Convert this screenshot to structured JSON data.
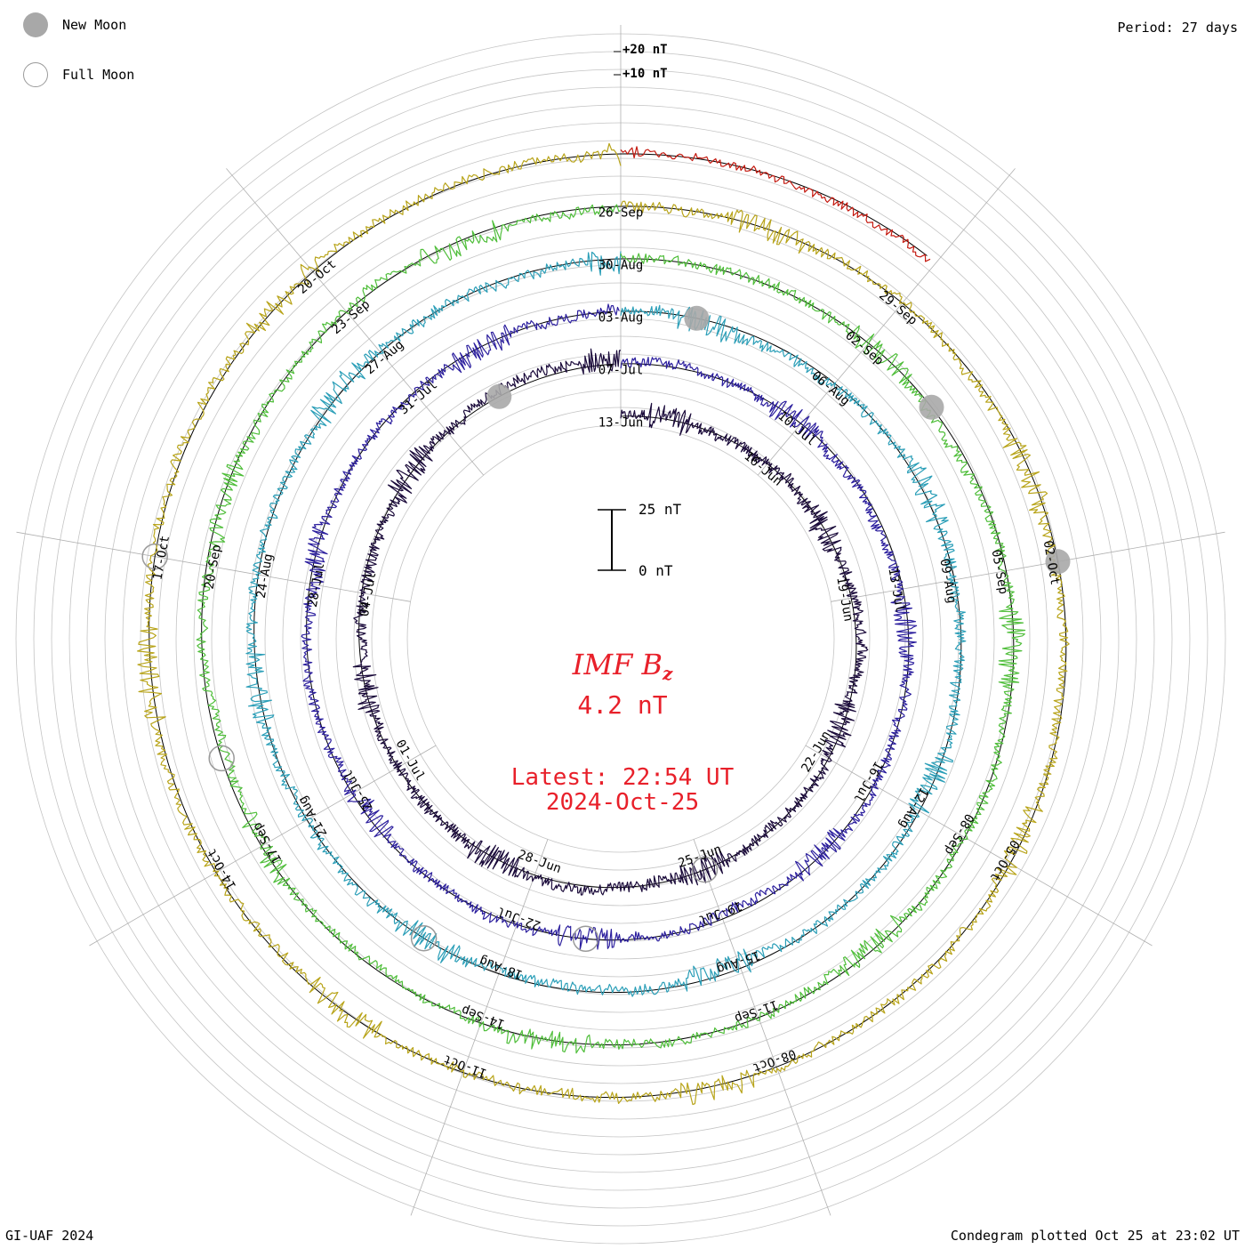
{
  "legend": {
    "new_moon": "New Moon",
    "full_moon": "Full Moon"
  },
  "period_label": "Period: 27 days",
  "ring_scale": {
    "plus20": "+20 nT",
    "plus10": "+10 nT"
  },
  "scale_bar": {
    "top": "25 nT",
    "bottom": "0 nT"
  },
  "center": {
    "title": "IMF B",
    "subscript": "z",
    "value": "4.2 nT",
    "latest_line1": "Latest: 22:54 UT",
    "latest_line2": "2024-Oct-25"
  },
  "footer": {
    "left": "GI-UAF 2024",
    "right": "Condegram plotted Oct 25 at 23:02 UT"
  },
  "colors": {
    "accent_text": "#e8202a",
    "grid": "#c4c4c4",
    "baseline": "#000000"
  },
  "chart_data": {
    "type": "line",
    "quantity": "IMF Bz",
    "unit": "nT",
    "period_days": 27,
    "series": [
      {
        "start": "2024-06-10",
        "color": "#1a0a3a",
        "amplitude": 10,
        "date_labels": [
          "13-Jun",
          "16-Jun",
          "19-Jun",
          "22-Jun",
          "25-Jun",
          "28-Jun",
          "01-Jul",
          "04-Jul"
        ]
      },
      {
        "start": "2024-07-07",
        "color": "#2c1f9e",
        "amplitude": 9,
        "date_labels": [
          "07-Jul",
          "10-Jul",
          "13-Jul",
          "16-Jul",
          "19-Jul",
          "22-Jul",
          "25-Jul",
          "28-Jul",
          "31-Jul"
        ]
      },
      {
        "start": "2024-08-03",
        "color": "#2c9fb8",
        "amplitude": 10,
        "date_labels": [
          "03-Aug",
          "06-Aug",
          "09-Aug",
          "12-Aug",
          "15-Aug",
          "18-Aug",
          "21-Aug",
          "24-Aug",
          "27-Aug"
        ]
      },
      {
        "start": "2024-08-30",
        "color": "#4fbe3a",
        "amplitude": 9,
        "date_labels": [
          "30-Aug",
          "02-Sep",
          "05-Sep",
          "08-Sep",
          "11-Sep",
          "14-Sep",
          "17-Sep",
          "20-Sep",
          "23-Sep"
        ]
      },
      {
        "start": "2024-09-26",
        "color": "#b8a41a",
        "amplitude": 9,
        "date_labels": [
          "26-Sep",
          "29-Sep",
          "02-Oct",
          "05-Oct",
          "08-Oct",
          "11-Oct",
          "14-Oct",
          "17-Oct",
          "20-Oct"
        ]
      },
      {
        "start": "2024-10-23",
        "color": "#c41a10",
        "amplitude": 7,
        "date_labels": []
      }
    ],
    "new_moons": [
      "2024-07-05",
      "2024-08-04",
      "2024-09-03",
      "2024-10-02"
    ],
    "full_moons": [
      "2024-06-22",
      "2024-07-21",
      "2024-08-19",
      "2024-09-18",
      "2024-10-17"
    ],
    "latest_value": 4.2
  }
}
